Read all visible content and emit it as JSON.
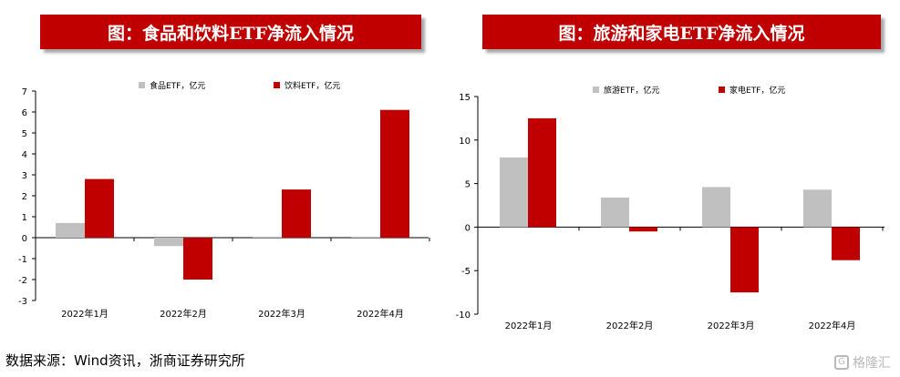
{
  "header": {
    "left_title": "图：食品和饮料ETF净流入情况",
    "right_title": "图：旅游和家电ETF净流入情况"
  },
  "footer": {
    "source": "数据来源：Wind资讯，浙商证券研究所",
    "watermark": "格隆汇",
    "watermark_icon": "G"
  },
  "colors": {
    "gray": "#c0c0c0",
    "red": "#c00000",
    "banner": "#c00000"
  },
  "chart_data": [
    {
      "type": "bar",
      "title": "图：食品和饮料ETF净流入情况",
      "categories": [
        "2022年1月",
        "2022年2月",
        "2022年3月",
        "2022年4月"
      ],
      "series": [
        {
          "name": "食品ETF，亿元",
          "color": "#c0c0c0",
          "values": [
            0.7,
            -0.4,
            0.05,
            0.05
          ]
        },
        {
          "name": "饮料ETF，亿元",
          "color": "#c00000",
          "values": [
            2.8,
            -2.0,
            2.3,
            6.1
          ]
        }
      ],
      "ylim": [
        -3,
        7
      ],
      "yticks": [
        -3,
        -2,
        -1,
        0,
        1,
        2,
        3,
        4,
        5,
        6,
        7
      ],
      "ytick_labels": [
        "-3",
        "-2",
        "-1",
        "0",
        "1",
        "2",
        "3",
        "4",
        "5",
        "6",
        "7"
      ],
      "legend": "top-center",
      "grid": false
    },
    {
      "type": "bar",
      "title": "图：旅游和家电ETF净流入情况",
      "categories": [
        "2022年1月",
        "2022年2月",
        "2022年3月",
        "2022年4月"
      ],
      "series": [
        {
          "name": "旅游ETF，亿元",
          "color": "#c0c0c0",
          "values": [
            8.0,
            3.4,
            4.6,
            4.3
          ]
        },
        {
          "name": "家电ETF，亿元",
          "color": "#c00000",
          "values": [
            12.5,
            -0.5,
            -7.5,
            -3.8
          ]
        }
      ],
      "ylim": [
        -10,
        15
      ],
      "yticks": [
        -10,
        -5,
        0,
        5,
        10,
        15
      ],
      "ytick_labels": [
        "-10",
        "-5",
        "0",
        "5",
        "10",
        "15"
      ],
      "legend": "top-center",
      "grid": false
    }
  ]
}
